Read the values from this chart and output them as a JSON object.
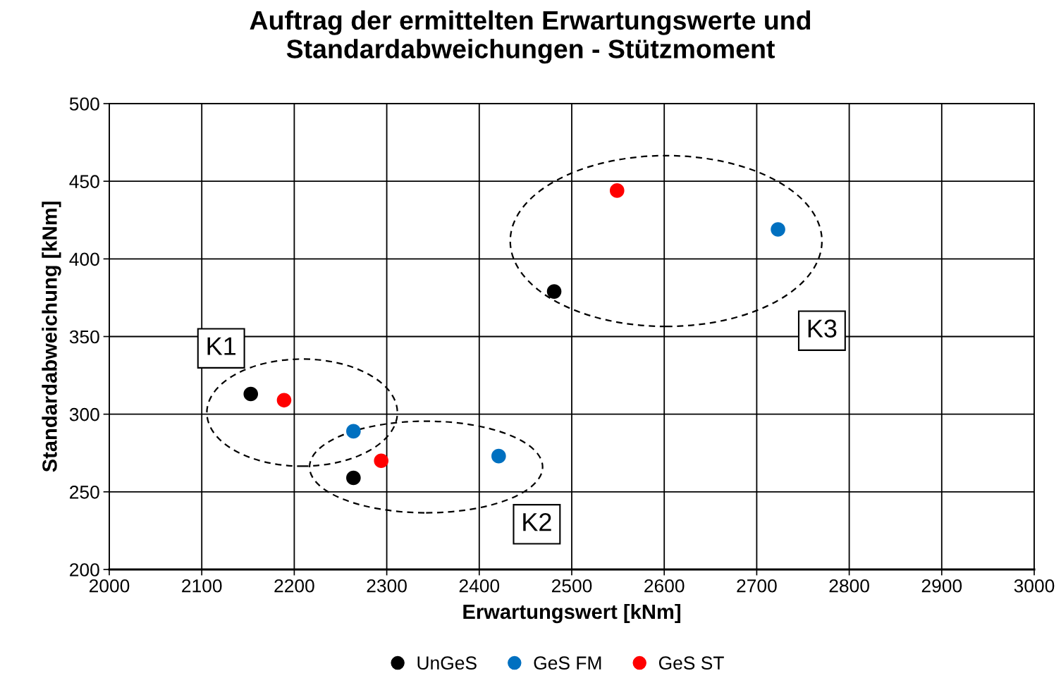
{
  "chart_data": {
    "type": "scatter",
    "title": "Auftrag der ermittelten Erwartungswerte und\nStandardabweichungen - Stützmoment",
    "xlabel": "Erwartungswert [kNm]",
    "ylabel": "Standardabweichung [kNm]",
    "series": [
      {
        "name": "UnGeS",
        "color": "#000000",
        "x": [
          2153,
          2264,
          2481
        ],
        "values": [
          313,
          259,
          379
        ]
      },
      {
        "name": "GeS FM",
        "color": "#0070c0",
        "x": [
          2264,
          2421,
          2723
        ],
        "values": [
          289,
          273,
          419
        ]
      },
      {
        "name": "GeS ST",
        "color": "#ff0000",
        "x": [
          2189,
          2294,
          2549
        ],
        "values": [
          309,
          270,
          444
        ]
      }
    ],
    "annotations": [
      "K1",
      "K2",
      "K3"
    ],
    "xlim": [
      2000,
      3000
    ],
    "xticks": [
      2000,
      2100,
      2200,
      2300,
      2400,
      2500,
      2600,
      2700,
      2800,
      2900,
      3000
    ],
    "ylim": [
      200,
      500
    ],
    "yticks": [
      200,
      250,
      300,
      350,
      400,
      450,
      500
    ],
    "grid": true,
    "legend": "bottom",
    "marker": "circle"
  }
}
